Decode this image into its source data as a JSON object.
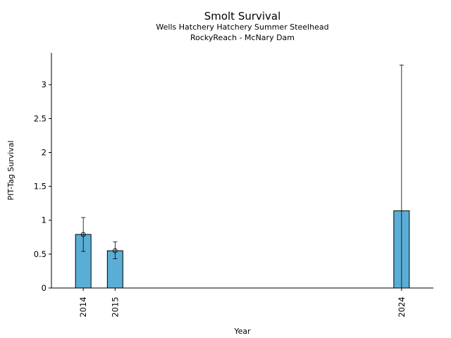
{
  "chart_data": {
    "type": "bar",
    "title": "Smolt Survival",
    "subtitle": [
      "Wells Hatchery Hatchery Summer Steelhead",
      "RockyReach - McNary Dam"
    ],
    "xlabel": "Year",
    "ylabel": "PIT-Tag Survival",
    "x": [
      2014,
      2015,
      2024
    ],
    "categories": [
      "2014",
      "2015",
      "2024"
    ],
    "values": [
      0.79,
      0.55,
      1.14
    ],
    "error_low": [
      0.54,
      0.43,
      0.0
    ],
    "error_high": [
      1.04,
      0.68,
      3.29
    ],
    "point_markers": [
      true,
      true,
      false
    ],
    "xlim": [
      2013.0,
      2025.0
    ],
    "ylim": [
      0,
      3.4
    ],
    "yticks": [
      0,
      0.5,
      1,
      1.5,
      2,
      2.5,
      3
    ],
    "ytick_labels": [
      "0",
      "0.5",
      "1",
      "1.5",
      "2",
      "2.5",
      "3"
    ],
    "grid": false,
    "bar_color": "#5aaed6",
    "edge_color": "#000000"
  }
}
